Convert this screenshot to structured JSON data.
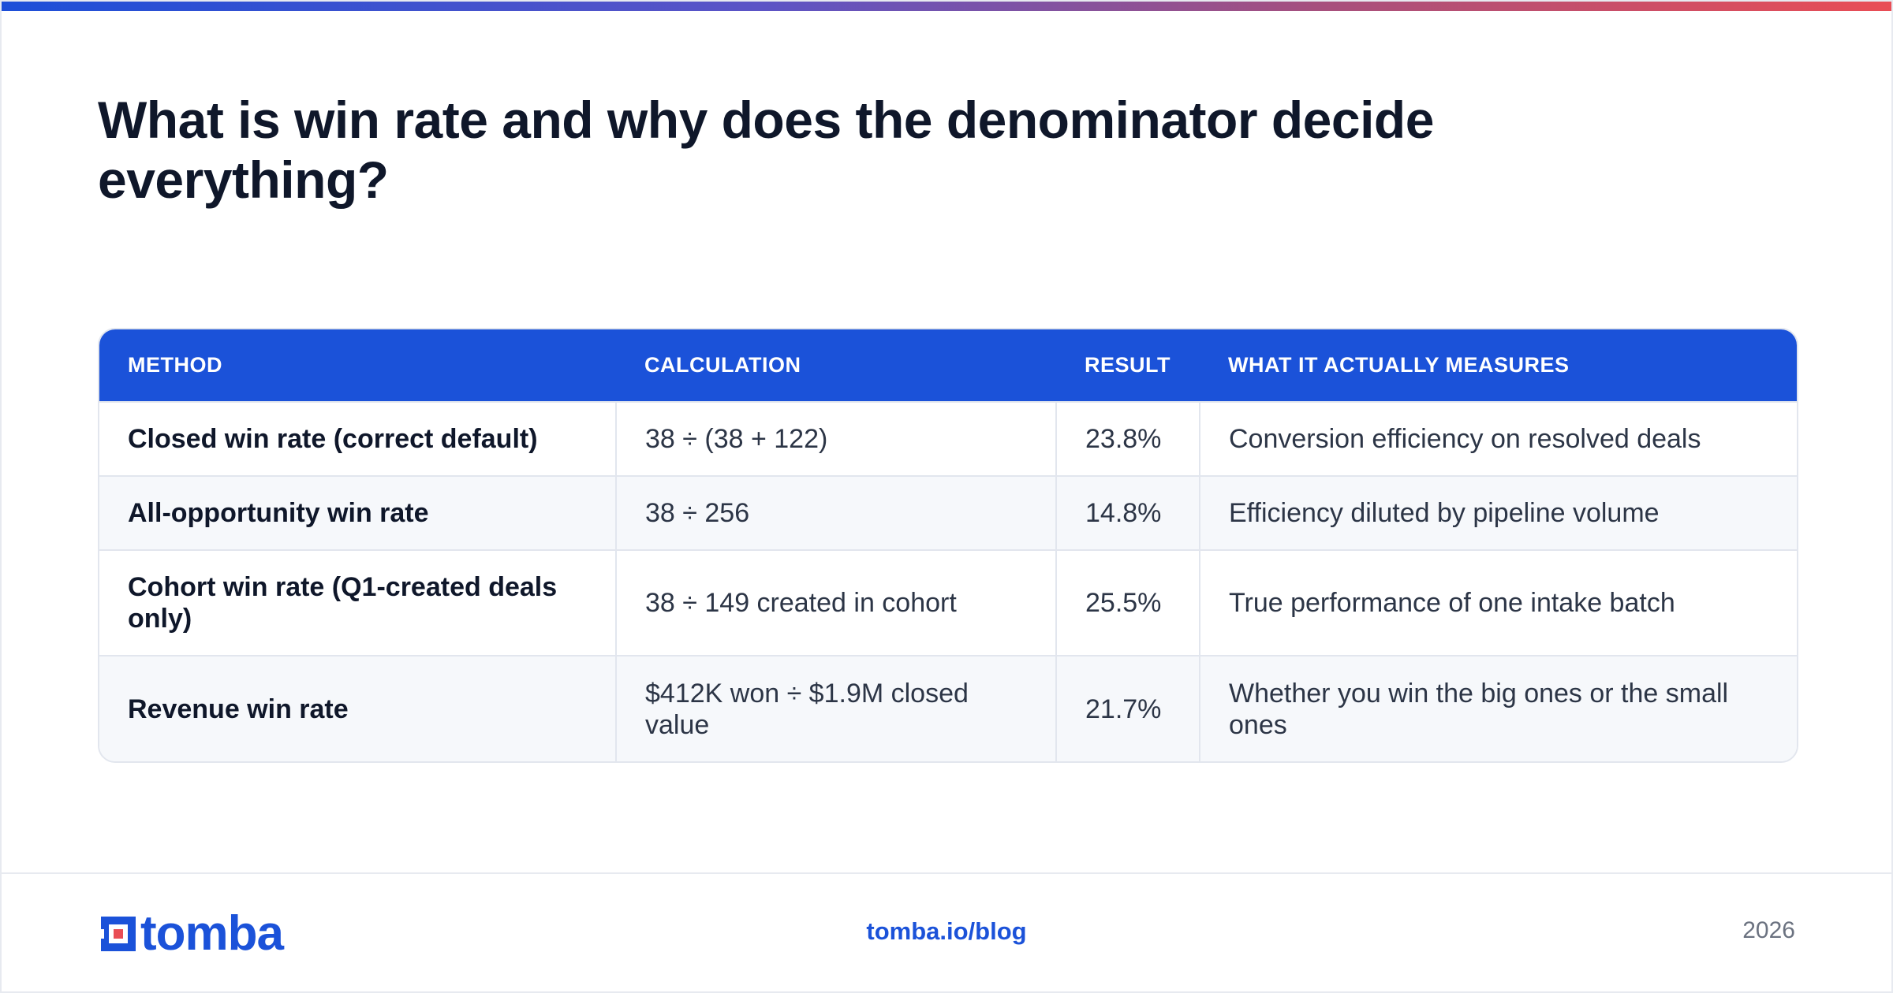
{
  "page": {
    "headline": "What is win rate and why does the denominator decide everything?"
  },
  "table": {
    "headers": [
      "METHOD",
      "CALCULATION",
      "RESULT",
      "WHAT IT ACTUALLY MEASURES"
    ],
    "rows": [
      {
        "method": "Closed win rate (correct default)",
        "calculation": "38 ÷ (38 + 122)",
        "result": "23.8%",
        "measures": "Conversion efficiency on resolved deals"
      },
      {
        "method": "All-opportunity win rate",
        "calculation": "38 ÷ 256",
        "result": "14.8%",
        "measures": "Efficiency diluted by pipeline volume"
      },
      {
        "method": "Cohort win rate (Q1-created deals only)",
        "calculation": "38 ÷ 149 created in cohort",
        "result": "25.5%",
        "measures": "True performance of one intake batch"
      },
      {
        "method": "Revenue win rate",
        "calculation": "$412K won ÷ $1.9M closed value",
        "result": "21.7%",
        "measures": "Whether you win the big ones or the small ones"
      }
    ]
  },
  "footer": {
    "logo_text": "tomba",
    "logo_icon": "tomba-logo-icon",
    "url": "tomba.io/blog",
    "year": "2026"
  },
  "colors": {
    "brand_blue": "#1b52d9",
    "accent_red": "#e94d55",
    "text_dark": "#0f172a",
    "row_alt": "#f6f8fb"
  }
}
